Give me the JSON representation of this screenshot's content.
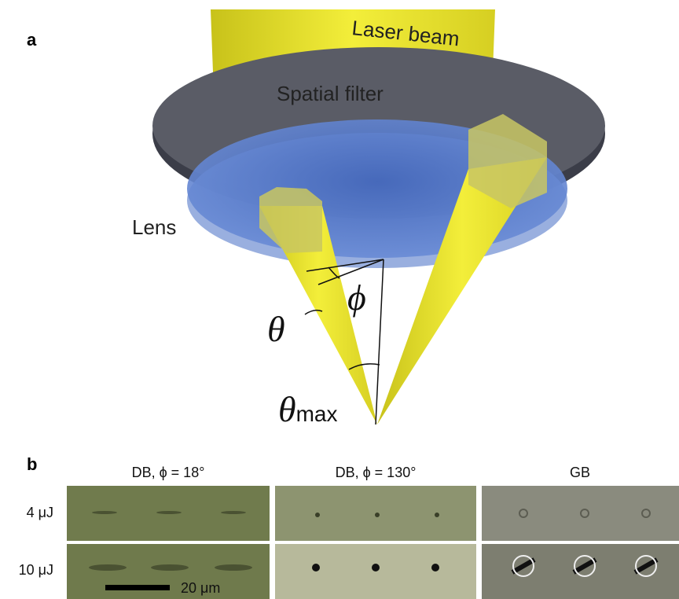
{
  "panel_a": {
    "label": "a",
    "laser_beam": "Laser beam",
    "spatial_filter": "Spatial filter",
    "lens": "Lens",
    "theta": "θ",
    "phi": "ϕ",
    "theta_max": {
      "symbol": "θ",
      "subscript": "max"
    }
  },
  "panel_b": {
    "label": "b",
    "columns": [
      "DB, ϕ = 18°",
      "DB, ϕ = 130°",
      "GB"
    ],
    "rows": [
      "4 μJ",
      "10 μJ"
    ],
    "scale_bar": "20 μm"
  }
}
